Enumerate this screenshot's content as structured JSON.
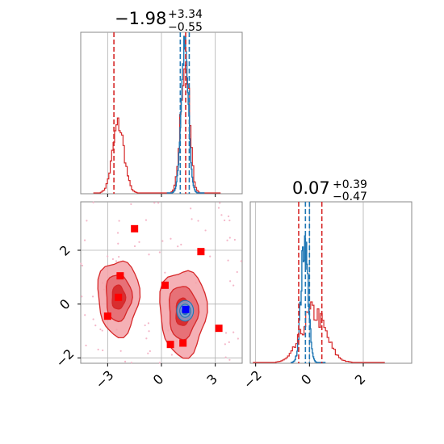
{
  "chart_data": {
    "type": "corner",
    "title_param1": {
      "value": "−1.98",
      "plus": "+3.34",
      "minus": "−0.55"
    },
    "title_param2": {
      "value": "0.07",
      "plus": "+0.39",
      "minus": "−0.47"
    },
    "colors": {
      "red": "#d62728",
      "blue": "#1f77b4",
      "marker": "#ff0000",
      "truth": "#0000ff",
      "grid": "#b0b0b0"
    },
    "axes": {
      "param1": {
        "range": [
          -4.5,
          4.5
        ],
        "ticks": [
          -3,
          0,
          3
        ],
        "tick_labels": [
          "−3",
          "0",
          "3"
        ]
      },
      "param2": {
        "range": [
          -2.2,
          3.8
        ],
        "ticks": [
          -2,
          0,
          2
        ],
        "tick_labels": [
          "−2",
          "0",
          "2"
        ]
      }
    },
    "hist_param1": {
      "red_quantiles": [
        -2.65,
        1.35
      ],
      "red_median": 1.35,
      "blue_quantiles": [
        1.05,
        1.55
      ],
      "blue_median": 1.3,
      "gridlines": [
        -3,
        0,
        3
      ]
    },
    "hist_param2": {
      "red_quantiles": [
        -0.4,
        0.46
      ],
      "red_median": -0.06,
      "blue_quantiles": [
        -0.15,
        0.0
      ],
      "gridlines": [
        -2,
        0,
        2
      ]
    },
    "scatter_points": [
      {
        "x": -1.5,
        "y": 2.8
      },
      {
        "x": 2.2,
        "y": 1.95
      },
      {
        "x": -2.3,
        "y": 1.05
      },
      {
        "x": 0.2,
        "y": 0.7
      },
      {
        "x": -2.4,
        "y": 0.25
      },
      {
        "x": -3.0,
        "y": -0.45
      },
      {
        "x": 3.2,
        "y": -0.9
      },
      {
        "x": 0.5,
        "y": -1.5
      },
      {
        "x": 1.2,
        "y": -1.45
      }
    ],
    "truth_point": {
      "x": 1.35,
      "y": -0.2
    },
    "clusters": [
      {
        "name": "left",
        "cx": -2.4,
        "cy": 0.25,
        "rx": 1.15,
        "ry": 1.4
      },
      {
        "name": "right",
        "cx": 1.2,
        "cy": -0.3,
        "rx": 1.3,
        "ry": 1.6
      }
    ]
  }
}
